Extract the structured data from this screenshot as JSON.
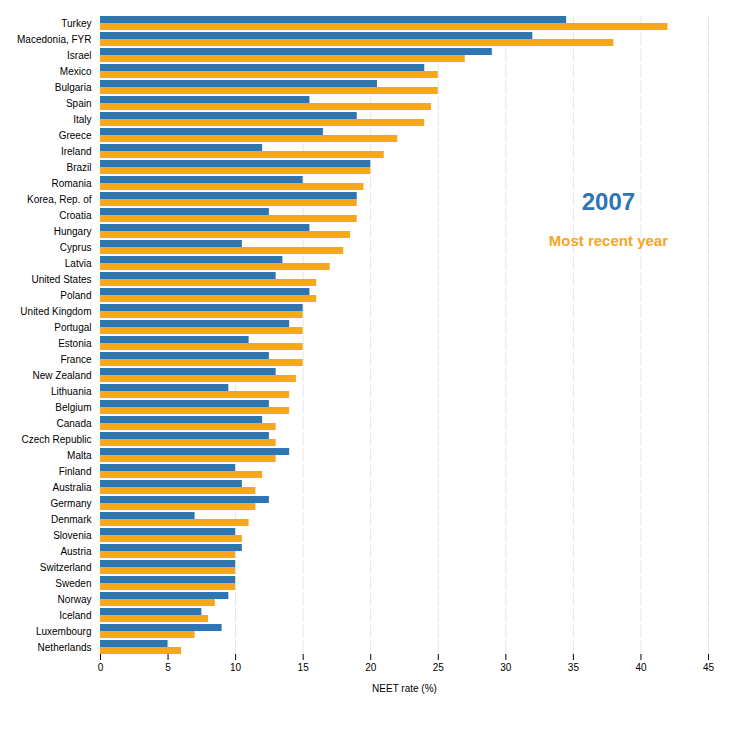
{
  "chart_data": {
    "type": "bar",
    "orientation": "horizontal",
    "categories": [
      "Turkey",
      "Macedonia, FYR",
      "Israel",
      "Mexico",
      "Bulgaria",
      "Spain",
      "Italy",
      "Greece",
      "Ireland",
      "Brazil",
      "Romania",
      "Korea, Rep. of",
      "Croatia",
      "Hungary",
      "Cyprus",
      "Latvia",
      "United States",
      "Poland",
      "United Kingdom",
      "Portugal",
      "Estonia",
      "France",
      "New Zealand",
      "Lithuania",
      "Belgium",
      "Canada",
      "Czech Republic",
      "Malta",
      "Finland",
      "Australia",
      "Germany",
      "Denmark",
      "Slovenia",
      "Austria",
      "Switzerland",
      "Sweden",
      "Norway",
      "Iceland",
      "Luxembourg",
      "Netherlands"
    ],
    "series": [
      {
        "name": "2007",
        "color": "#2E75B6",
        "values": [
          34.5,
          32.0,
          29.0,
          24.0,
          20.5,
          15.5,
          19.0,
          16.5,
          12.0,
          20.0,
          15.0,
          19.0,
          12.5,
          15.5,
          10.5,
          13.5,
          13.0,
          15.5,
          15.0,
          14.0,
          11.0,
          12.5,
          13.0,
          9.5,
          12.5,
          12.0,
          12.5,
          14.0,
          10.0,
          10.5,
          12.5,
          7.0,
          10.0,
          10.5,
          10.0,
          10.0,
          9.5,
          7.5,
          9.0,
          5.0
        ]
      },
      {
        "name": "Most recent year",
        "color": "#F5A623",
        "values": [
          42.0,
          38.0,
          27.0,
          25.0,
          25.0,
          24.5,
          24.0,
          22.0,
          21.0,
          20.0,
          19.5,
          19.0,
          19.0,
          18.5,
          18.0,
          17.0,
          16.0,
          16.0,
          15.0,
          15.0,
          15.0,
          15.0,
          14.5,
          14.0,
          14.0,
          13.0,
          13.0,
          13.0,
          12.0,
          11.5,
          11.5,
          11.0,
          10.5,
          10.0,
          10.0,
          10.0,
          8.5,
          8.0,
          7.0,
          6.0
        ]
      }
    ],
    "xlabel": "NEET rate (%)",
    "xlim": [
      0,
      45
    ],
    "xticks": [
      0,
      5,
      10,
      15,
      20,
      25,
      30,
      35,
      40,
      45
    ],
    "grid": true,
    "legend": "upper right"
  }
}
